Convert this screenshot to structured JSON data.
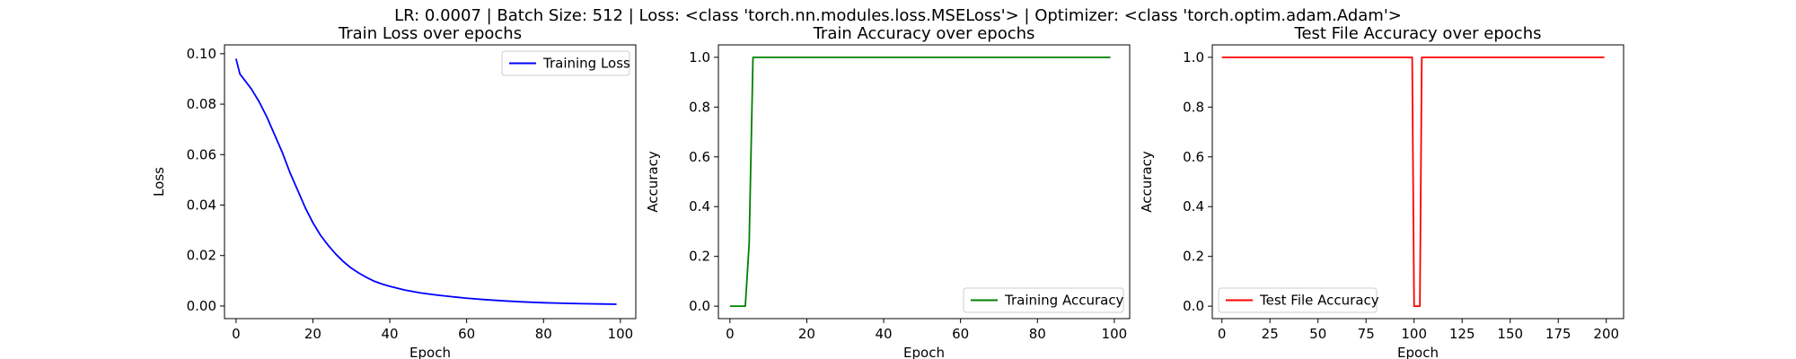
{
  "figure": {
    "suptitle": "LR: 0.0007 | Batch Size: 512 | Loss: <class 'torch.nn.modules.loss.MSELoss'> | Optimizer: <class 'torch.optim.adam.Adam'>"
  },
  "chart_data": [
    {
      "type": "line",
      "title": "Train Loss over epochs",
      "xlabel": "Epoch",
      "ylabel": "Loss",
      "xlim": [
        -3,
        104
      ],
      "ylim": [
        -0.005,
        0.1035
      ],
      "xticks": [
        0,
        20,
        40,
        60,
        80,
        100
      ],
      "yticks": [
        0.0,
        0.02,
        0.04,
        0.06,
        0.08,
        0.1
      ],
      "xtick_labels": [
        "0",
        "20",
        "40",
        "60",
        "80",
        "100"
      ],
      "ytick_labels": [
        "0.00",
        "0.02",
        "0.04",
        "0.06",
        "0.08",
        "0.10"
      ],
      "legend_position": "upper right",
      "series": [
        {
          "name": "Training Loss",
          "color": "#0000ff",
          "x": [
            0,
            1,
            2,
            4,
            6,
            8,
            10,
            12,
            14,
            16,
            18,
            20,
            22,
            24,
            26,
            28,
            30,
            32,
            34,
            36,
            38,
            40,
            44,
            48,
            52,
            56,
            60,
            65,
            70,
            75,
            80,
            85,
            90,
            95,
            99
          ],
          "y": [
            0.098,
            0.092,
            0.09,
            0.086,
            0.081,
            0.075,
            0.068,
            0.061,
            0.053,
            0.046,
            0.039,
            0.033,
            0.028,
            0.024,
            0.0205,
            0.0175,
            0.015,
            0.013,
            0.0113,
            0.0098,
            0.0087,
            0.0078,
            0.0063,
            0.0052,
            0.0044,
            0.0037,
            0.0031,
            0.0025,
            0.002,
            0.0016,
            0.0013,
            0.0011,
            0.0009,
            0.0008,
            0.0007
          ]
        }
      ]
    },
    {
      "type": "line",
      "title": "Train Accuracy over epochs",
      "xlabel": "Epoch",
      "ylabel": "Accuracy",
      "xlim": [
        -3,
        104
      ],
      "ylim": [
        -0.05,
        1.05
      ],
      "xticks": [
        0,
        20,
        40,
        60,
        80,
        100
      ],
      "yticks": [
        0.0,
        0.2,
        0.4,
        0.6,
        0.8,
        1.0
      ],
      "xtick_labels": [
        "0",
        "20",
        "40",
        "60",
        "80",
        "100"
      ],
      "ytick_labels": [
        "0.0",
        "0.2",
        "0.4",
        "0.6",
        "0.8",
        "1.0"
      ],
      "legend_position": "lower right",
      "series": [
        {
          "name": "Training Accuracy",
          "color": "#008000",
          "x": [
            0,
            1,
            2,
            3,
            4,
            5,
            6,
            7,
            99
          ],
          "y": [
            0,
            0,
            0,
            0,
            0,
            0.25,
            1,
            1,
            1
          ]
        }
      ]
    },
    {
      "type": "line",
      "title": "Test File Accuracy over epochs",
      "xlabel": "Epoch",
      "ylabel": "Accuracy",
      "xlim": [
        -5,
        209
      ],
      "ylim": [
        -0.05,
        1.05
      ],
      "xticks": [
        0,
        25,
        50,
        75,
        100,
        125,
        150,
        175,
        200
      ],
      "yticks": [
        0.0,
        0.2,
        0.4,
        0.6,
        0.8,
        1.0
      ],
      "xtick_labels": [
        "0",
        "25",
        "50",
        "75",
        "100",
        "125",
        "150",
        "175",
        "200"
      ],
      "ytick_labels": [
        "0.0",
        "0.2",
        "0.4",
        "0.6",
        "0.8",
        "1.0"
      ],
      "legend_position": "lower left",
      "series": [
        {
          "name": "Test File Accuracy",
          "color": "#ff0000",
          "x": [
            0,
            99,
            100,
            101,
            102,
            103,
            104,
            105,
            199
          ],
          "y": [
            1,
            1,
            0,
            0,
            0,
            0,
            1,
            1,
            1
          ]
        }
      ]
    }
  ]
}
